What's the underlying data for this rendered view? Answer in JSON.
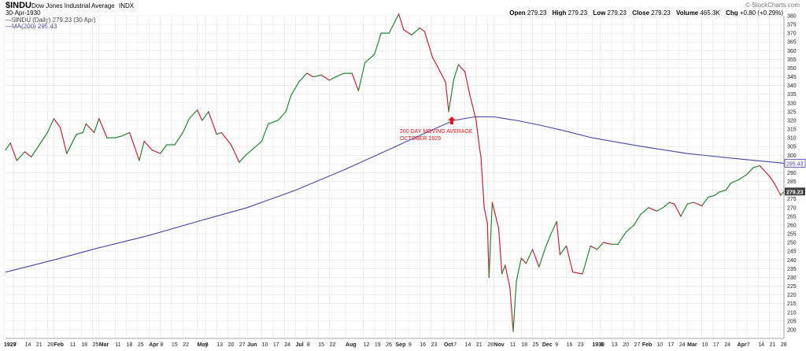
{
  "header": {
    "symbol": "$INDU",
    "name": "Dow Jones Industrial Average",
    "exchange": "INDX",
    "date": "30-Apr-1930",
    "watermark": "© StockCharts.com",
    "ohlc": [
      {
        "label": "Open",
        "value": "279.23"
      },
      {
        "label": "High",
        "value": "279.23"
      },
      {
        "label": "Low",
        "value": "279.23"
      },
      {
        "label": "Close",
        "value": "279.23"
      },
      {
        "label": "Volume",
        "value": "465.3K"
      },
      {
        "label": "Chg",
        "value": "+0.80 (+0.29%)"
      }
    ],
    "legend": [
      {
        "text": "$INDU (Daily) 279.23 (30 Apr)",
        "color": "#404040",
        "icon": "dash-icon"
      },
      {
        "text": "MA(200) 295.43",
        "color": "#3b3b9a",
        "icon": "dash-icon"
      }
    ]
  },
  "annotation": {
    "lines": [
      "200 DAY MOVING AVERAGE",
      "OCTOBER 1929"
    ],
    "color": "#e8141c",
    "icon": "arrow-up-icon"
  },
  "colors": {
    "up": "#1f8a2a",
    "down": "#cc1f3a",
    "ma": "#4545a8",
    "grid": "#e2e2e2",
    "axis": "#888888",
    "last_bg": "#404040"
  },
  "chart_data": {
    "type": "line",
    "ylim": [
      195,
      380
    ],
    "ytick_start": 200,
    "ytick_step": 5,
    "xlim": [
      "1929-01-02",
      "1930-04-30"
    ],
    "xlabels": [
      {
        "date": "1929-01-01",
        "label": "1929",
        "bold": true
      },
      {
        "date": "1929-01-07",
        "label": "7"
      },
      {
        "date": "1929-01-14",
        "label": "14"
      },
      {
        "date": "1929-01-21",
        "label": "21"
      },
      {
        "date": "1929-01-28",
        "label": "28"
      },
      {
        "date": "1929-02-01",
        "label": "Feb",
        "bold": true
      },
      {
        "date": "1929-02-11",
        "label": "11"
      },
      {
        "date": "1929-02-18",
        "label": "18"
      },
      {
        "date": "1929-02-25",
        "label": "25"
      },
      {
        "date": "1929-03-01",
        "label": "Mar",
        "bold": true
      },
      {
        "date": "1929-03-11",
        "label": "11"
      },
      {
        "date": "1929-03-18",
        "label": "18"
      },
      {
        "date": "1929-03-25",
        "label": "25"
      },
      {
        "date": "1929-04-01",
        "label": "Apr",
        "bold": true
      },
      {
        "date": "1929-04-08",
        "label": "8"
      },
      {
        "date": "1929-04-15",
        "label": "15"
      },
      {
        "date": "1929-04-22",
        "label": "22"
      },
      {
        "date": "1929-05-01",
        "label": "May",
        "bold": true
      },
      {
        "date": "1929-05-06",
        "label": "6"
      },
      {
        "date": "1929-05-13",
        "label": "13"
      },
      {
        "date": "1929-05-20",
        "label": "20"
      },
      {
        "date": "1929-05-27",
        "label": "27"
      },
      {
        "date": "1929-06-01",
        "label": "Jun",
        "bold": true
      },
      {
        "date": "1929-06-10",
        "label": "10"
      },
      {
        "date": "1929-06-17",
        "label": "17"
      },
      {
        "date": "1929-06-24",
        "label": "24"
      },
      {
        "date": "1929-07-01",
        "label": "Jul",
        "bold": true
      },
      {
        "date": "1929-07-08",
        "label": "8"
      },
      {
        "date": "1929-07-15",
        "label": "15"
      },
      {
        "date": "1929-07-22",
        "label": "22"
      },
      {
        "date": "1929-08-01",
        "label": "Aug",
        "bold": true
      },
      {
        "date": "1929-08-12",
        "label": "12"
      },
      {
        "date": "1929-08-19",
        "label": "19"
      },
      {
        "date": "1929-08-26",
        "label": "26"
      },
      {
        "date": "1929-09-01",
        "label": "Sep",
        "bold": true
      },
      {
        "date": "1929-09-09",
        "label": "9"
      },
      {
        "date": "1929-09-16",
        "label": "16"
      },
      {
        "date": "1929-09-23",
        "label": "23"
      },
      {
        "date": "1929-10-01",
        "label": "Oct",
        "bold": true
      },
      {
        "date": "1929-10-07",
        "label": "7"
      },
      {
        "date": "1929-10-14",
        "label": "14"
      },
      {
        "date": "1929-10-21",
        "label": "21"
      },
      {
        "date": "1929-10-28",
        "label": "28"
      },
      {
        "date": "1929-11-01",
        "label": "Nov",
        "bold": true
      },
      {
        "date": "1929-11-11",
        "label": "11"
      },
      {
        "date": "1929-11-18",
        "label": "18"
      },
      {
        "date": "1929-11-25",
        "label": "25"
      },
      {
        "date": "1929-12-01",
        "label": "Dec",
        "bold": true
      },
      {
        "date": "1929-12-09",
        "label": "9"
      },
      {
        "date": "1929-12-16",
        "label": "16"
      },
      {
        "date": "1929-12-23",
        "label": "23"
      },
      {
        "date": "1930-01-01",
        "label": "1930",
        "bold": true
      },
      {
        "date": "1930-01-06",
        "label": "6"
      },
      {
        "date": "1930-01-13",
        "label": "13"
      },
      {
        "date": "1930-01-20",
        "label": "20"
      },
      {
        "date": "1930-01-27",
        "label": "27"
      },
      {
        "date": "1930-02-01",
        "label": "Feb",
        "bold": true
      },
      {
        "date": "1930-02-10",
        "label": "10"
      },
      {
        "date": "1930-02-17",
        "label": "17"
      },
      {
        "date": "1930-02-24",
        "label": "24"
      },
      {
        "date": "1930-03-01",
        "label": "Mar",
        "bold": true
      },
      {
        "date": "1930-03-10",
        "label": "10"
      },
      {
        "date": "1930-03-17",
        "label": "17"
      },
      {
        "date": "1930-03-24",
        "label": "24"
      },
      {
        "date": "1930-04-01",
        "label": "Apr",
        "bold": true
      },
      {
        "date": "1930-04-07",
        "label": "7"
      },
      {
        "date": "1930-04-14",
        "label": "14"
      },
      {
        "date": "1930-04-21",
        "label": "21"
      },
      {
        "date": "1930-04-28",
        "label": "28"
      }
    ],
    "series": [
      {
        "name": "$INDU (Daily) 279.23 (30 Apr)",
        "points": [
          [
            "1929-01-02",
            303
          ],
          [
            "1929-01-05",
            307
          ],
          [
            "1929-01-09",
            297
          ],
          [
            "1929-01-14",
            302
          ],
          [
            "1929-01-18",
            299
          ],
          [
            "1929-01-23",
            306
          ],
          [
            "1929-01-28",
            313
          ],
          [
            "1929-02-01",
            321
          ],
          [
            "1929-02-05",
            316
          ],
          [
            "1929-02-09",
            301
          ],
          [
            "1929-02-15",
            312
          ],
          [
            "1929-02-19",
            313
          ],
          [
            "1929-02-21",
            318
          ],
          [
            "1929-02-26",
            313
          ],
          [
            "1929-03-01",
            321
          ],
          [
            "1929-03-06",
            310
          ],
          [
            "1929-03-11",
            310
          ],
          [
            "1929-03-15",
            311
          ],
          [
            "1929-03-20",
            313
          ],
          [
            "1929-03-26",
            297
          ],
          [
            "1929-03-29",
            308
          ],
          [
            "1929-04-03",
            303
          ],
          [
            "1929-04-08",
            301
          ],
          [
            "1929-04-12",
            306
          ],
          [
            "1929-04-17",
            306
          ],
          [
            "1929-04-22",
            313
          ],
          [
            "1929-04-26",
            321
          ],
          [
            "1929-05-01",
            326
          ],
          [
            "1929-05-04",
            320
          ],
          [
            "1929-05-08",
            325
          ],
          [
            "1929-05-13",
            312
          ],
          [
            "1929-05-16",
            313
          ],
          [
            "1929-05-22",
            306
          ],
          [
            "1929-05-27",
            296
          ],
          [
            "1929-05-31",
            300
          ],
          [
            "1929-06-05",
            304
          ],
          [
            "1929-06-10",
            308
          ],
          [
            "1929-06-14",
            318
          ],
          [
            "1929-06-20",
            320
          ],
          [
            "1929-06-25",
            325
          ],
          [
            "1929-06-28",
            334
          ],
          [
            "1929-07-03",
            342
          ],
          [
            "1929-07-08",
            347
          ],
          [
            "1929-07-12",
            345
          ],
          [
            "1929-07-17",
            346
          ],
          [
            "1929-07-22",
            343
          ],
          [
            "1929-07-26",
            345
          ],
          [
            "1929-07-31",
            347
          ],
          [
            "1929-08-05",
            347
          ],
          [
            "1929-08-09",
            337
          ],
          [
            "1929-08-13",
            353
          ],
          [
            "1929-08-19",
            358
          ],
          [
            "1929-08-23",
            370
          ],
          [
            "1929-08-28",
            370
          ],
          [
            "1929-09-03",
            381
          ],
          [
            "1929-09-06",
            372
          ],
          [
            "1929-09-11",
            369
          ],
          [
            "1929-09-16",
            373
          ],
          [
            "1929-09-19",
            371
          ],
          [
            "1929-09-24",
            356
          ],
          [
            "1929-09-27",
            351
          ],
          [
            "1929-10-02",
            342
          ],
          [
            "1929-10-04",
            325
          ],
          [
            "1929-10-07",
            343
          ],
          [
            "1929-10-10",
            352
          ],
          [
            "1929-10-14",
            348
          ],
          [
            "1929-10-17",
            335
          ],
          [
            "1929-10-21",
            320
          ],
          [
            "1929-10-23",
            305
          ],
          [
            "1929-10-24",
            299
          ],
          [
            "1929-10-26",
            270
          ],
          [
            "1929-10-28",
            261
          ],
          [
            "1929-10-29",
            230
          ],
          [
            "1929-10-31",
            273
          ],
          [
            "1929-11-04",
            258
          ],
          [
            "1929-11-06",
            232
          ],
          [
            "1929-11-08",
            237
          ],
          [
            "1929-11-11",
            224
          ],
          [
            "1929-11-13",
            199
          ],
          [
            "1929-11-15",
            228
          ],
          [
            "1929-11-18",
            241
          ],
          [
            "1929-11-21",
            238
          ],
          [
            "1929-11-25",
            246
          ],
          [
            "1929-11-29",
            236
          ],
          [
            "1929-12-03",
            247
          ],
          [
            "1929-12-06",
            254
          ],
          [
            "1929-12-10",
            262
          ],
          [
            "1929-12-12",
            243
          ],
          [
            "1929-12-16",
            248
          ],
          [
            "1929-12-20",
            233
          ],
          [
            "1929-12-26",
            232
          ],
          [
            "1929-12-31",
            248
          ],
          [
            "1930-01-04",
            246
          ],
          [
            "1930-01-08",
            250
          ],
          [
            "1930-01-13",
            249
          ],
          [
            "1930-01-17",
            249
          ],
          [
            "1930-01-22",
            256
          ],
          [
            "1930-01-27",
            260
          ],
          [
            "1930-01-31",
            266
          ],
          [
            "1930-02-05",
            270
          ],
          [
            "1930-02-10",
            268
          ],
          [
            "1930-02-14",
            270
          ],
          [
            "1930-02-18",
            273
          ],
          [
            "1930-02-21",
            272
          ],
          [
            "1930-02-25",
            265
          ],
          [
            "1930-03-01",
            272
          ],
          [
            "1930-03-05",
            273
          ],
          [
            "1930-03-10",
            271
          ],
          [
            "1930-03-14",
            276
          ],
          [
            "1930-03-18",
            277
          ],
          [
            "1930-03-21",
            279
          ],
          [
            "1930-03-25",
            280
          ],
          [
            "1930-03-28",
            284
          ],
          [
            "1930-04-02",
            286
          ],
          [
            "1930-04-07",
            289
          ],
          [
            "1930-04-11",
            293
          ],
          [
            "1930-04-15",
            294
          ],
          [
            "1930-04-17",
            292
          ],
          [
            "1930-04-21",
            288
          ],
          [
            "1930-04-24",
            284
          ],
          [
            "1930-04-28",
            277
          ],
          [
            "1930-04-30",
            279.23
          ]
        ]
      },
      {
        "name": "MA(200) 295.43",
        "points": [
          [
            "1929-01-02",
            233
          ],
          [
            "1929-02-01",
            240
          ],
          [
            "1929-03-01",
            247
          ],
          [
            "1929-04-01",
            254
          ],
          [
            "1929-05-01",
            262
          ],
          [
            "1929-06-01",
            270
          ],
          [
            "1929-07-01",
            280
          ],
          [
            "1929-08-01",
            292
          ],
          [
            "1929-09-01",
            305
          ],
          [
            "1929-09-20",
            313
          ],
          [
            "1929-10-07",
            320
          ],
          [
            "1929-10-20",
            322
          ],
          [
            "1929-11-01",
            322
          ],
          [
            "1929-11-15",
            320
          ],
          [
            "1929-12-01",
            317
          ],
          [
            "1929-12-15",
            314
          ],
          [
            "1930-01-01",
            310
          ],
          [
            "1930-02-01",
            305
          ],
          [
            "1930-03-01",
            301
          ],
          [
            "1930-04-01",
            298
          ],
          [
            "1930-04-30",
            295.43
          ]
        ]
      }
    ],
    "last_labels": {
      "ma": "295.43",
      "price": "279.23"
    }
  }
}
